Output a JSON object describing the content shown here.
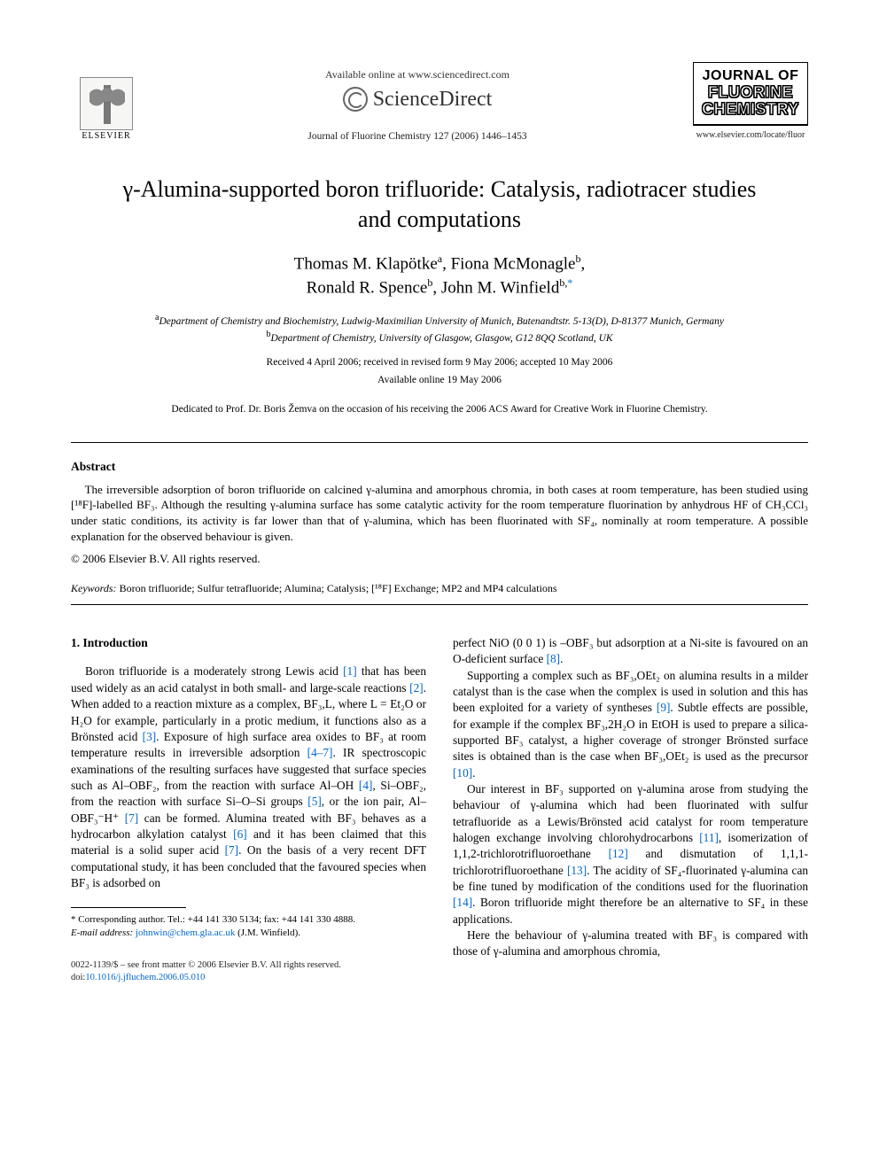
{
  "header": {
    "available_line": "Available online at www.sciencedirect.com",
    "sd_brand": "ScienceDirect",
    "elsevier_label": "ELSEVIER",
    "journal_ref": "Journal of Fluorine Chemistry 127 (2006) 1446–1453",
    "jfc_line1": "JOURNAL OF",
    "jfc_line2": "FLUORINE",
    "jfc_line3": "CHEMISTRY",
    "journal_url": "www.elsevier.com/locate/fluor"
  },
  "title": "γ-Alumina-supported boron trifluoride: Catalysis, radiotracer studies and computations",
  "authors": {
    "a1_name": "Thomas M. Klapötke",
    "a1_aff": "a",
    "a2_name": "Fiona McMonagle",
    "a2_aff": "b",
    "a3_name": "Ronald R. Spence",
    "a3_aff": "b",
    "a4_name": "John M. Winfield",
    "a4_aff": "b,",
    "corr_mark": "*"
  },
  "affiliations": {
    "a_label": "a",
    "a_text": "Department of Chemistry and Biochemistry, Ludwig-Maximilian University of Munich, Butenandtstr. 5-13(D), D-81377 Munich, Germany",
    "b_label": "b",
    "b_text": "Department of Chemistry, University of Glasgow, Glasgow, G12 8QQ Scotland, UK"
  },
  "dates": {
    "received": "Received 4 April 2006; received in revised form 9 May 2006; accepted 10 May 2006",
    "online": "Available online 19 May 2006"
  },
  "dedication": "Dedicated to Prof. Dr. Boris Žemva on the occasion of his receiving the 2006 ACS Award for Creative Work in Fluorine Chemistry.",
  "abstract": {
    "heading": "Abstract",
    "p1": "The irreversible adsorption of boron trifluoride on calcined γ-alumina and amorphous chromia, in both cases at room temperature, has been studied using [¹⁸F]-labelled BF₃. Although the resulting γ-alumina surface has some catalytic activity for the room temperature fluorination by anhydrous HF of CH₃CCl₃ under static conditions, its activity is far lower than that of γ-alumina, which has been fluorinated with SF₄, nominally at room temperature. A possible explanation for the observed behaviour is given.",
    "copyright": "© 2006 Elsevier B.V. All rights reserved."
  },
  "keywords": {
    "label": "Keywords:",
    "text": " Boron trifluoride; Sulfur tetrafluoride; Alumina; Catalysis; [¹⁸F] Exchange; MP2 and MP4 calculations"
  },
  "section1": {
    "heading": "1. Introduction",
    "col1_p1a": "Boron trifluoride is a moderately strong Lewis acid ",
    "ref1": "[1]",
    "col1_p1b": " that has been used widely as an acid catalyst in both small- and large-scale reactions ",
    "ref2": "[2]",
    "col1_p1c": ". When added to a reaction mixture as a complex, BF₃,L, where L = Et₂O or H₂O for example, particularly in a protic medium, it functions also as a Brönsted acid ",
    "ref3": "[3]",
    "col1_p1d": ". Exposure of high surface area oxides to BF₃ at room temperature results in irreversible adsorption ",
    "ref4_7": "[4–7]",
    "col1_p1e": ". IR spectroscopic examinations of the resulting surfaces have suggested that surface species such as Al–OBF₂, from the reaction with surface Al–OH ",
    "ref4": "[4]",
    "col1_p1f": ", Si–OBF₂, from the reaction with surface Si–O–Si groups ",
    "ref5": "[5]",
    "col1_p1g": ", or the ion pair, Al–OBF₃⁻H⁺ ",
    "ref7": "[7]",
    "col1_p1h": " can be formed. Alumina treated with BF₃ behaves as a hydrocarbon alkylation catalyst ",
    "ref6": "[6]",
    "col1_p1i": " and it has been claimed that this material is a solid super acid ",
    "ref7b": "[7]",
    "col1_p1j": ". On the basis of a very recent DFT computational study, it has been concluded that the favoured species when BF₃ is adsorbed on",
    "col2_p1a": "perfect NiO (0 0 1) is –OBF₃ but adsorption at a Ni-site is favoured on an O-deficient surface ",
    "ref8": "[8]",
    "col2_p1b": ".",
    "col2_p2a": "Supporting a complex such as BF₃,OEt₂ on alumina results in a milder catalyst than is the case when the complex is used in solution and this has been exploited for a variety of syntheses ",
    "ref9": "[9]",
    "col2_p2b": ". Subtle effects are possible, for example if the complex BF₃,2H₂O in EtOH is used to prepare a silica-supported BF₃ catalyst, a higher coverage of stronger Brönsted surface sites is obtained than is the case when BF₃,OEt₂ is used as the precursor ",
    "ref10": "[10]",
    "col2_p2c": ".",
    "col2_p3a": "Our interest in BF₃ supported on γ-alumina arose from studying the behaviour of γ-alumina which had been fluorinated with sulfur tetrafluoride as a Lewis/Brönsted acid catalyst for room temperature halogen exchange involving chlorohydrocarbons ",
    "ref11": "[11]",
    "col2_p3b": ", isomerization of 1,1,2-trichlorotrifluoroethane ",
    "ref12": "[12]",
    "col2_p3c": " and dismutation of 1,1,1-trichlorotrifluoroethane ",
    "ref13": "[13]",
    "col2_p3d": ". The acidity of SF₄-fluorinated γ-alumina can be fine tuned by modification of the conditions used for the fluorination ",
    "ref14": "[14]",
    "col2_p3e": ". Boron trifluoride might therefore be an alternative to SF₄ in these applications.",
    "col2_p4": "Here the behaviour of γ-alumina treated with BF₃ is compared with those of γ-alumina and amorphous chromia,"
  },
  "footnote": {
    "corr_label": "* Corresponding author. Tel.: +44 141 330 5134; fax: +44 141 330 4888.",
    "email_label": "E-mail address:",
    "email": "johnwin@chem.gla.ac.uk",
    "email_suffix": " (J.M. Winfield)."
  },
  "footer": {
    "line1": "0022-1139/$ – see front matter © 2006 Elsevier B.V. All rights reserved.",
    "doi_label": "doi:",
    "doi": "10.1016/j.jfluchem.2006.05.010"
  }
}
